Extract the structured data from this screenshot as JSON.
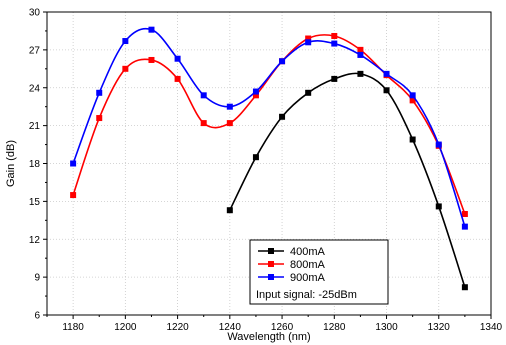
{
  "chart_data": {
    "type": "line",
    "title": "",
    "xlabel": "Wavelength (nm)",
    "ylabel": "Gain (dB)",
    "xlim": [
      1170,
      1340
    ],
    "ylim": [
      6,
      30
    ],
    "xticks": [
      1180,
      1200,
      1220,
      1240,
      1260,
      1280,
      1300,
      1320,
      1340
    ],
    "yticks": [
      6,
      9,
      12,
      15,
      18,
      21,
      24,
      27,
      30
    ],
    "grid": true,
    "grid_style": "dotted",
    "legend_position": "bottom-center",
    "annotation": "Input signal: -25dBm",
    "series": [
      {
        "name": "400mA",
        "color": "#000000",
        "x": [
          1240,
          1250,
          1260,
          1270,
          1280,
          1290,
          1300,
          1310,
          1320,
          1330
        ],
        "y": [
          14.3,
          18.5,
          21.7,
          23.6,
          24.7,
          25.1,
          23.8,
          19.9,
          14.6,
          8.2
        ]
      },
      {
        "name": "800mA",
        "color": "#ff0000",
        "x": [
          1180,
          1190,
          1200,
          1210,
          1220,
          1230,
          1240,
          1250,
          1260,
          1270,
          1280,
          1290,
          1300,
          1310,
          1320,
          1330
        ],
        "y": [
          15.5,
          21.6,
          25.5,
          26.2,
          24.7,
          21.2,
          21.2,
          23.4,
          26.1,
          27.9,
          28.1,
          27.0,
          25.0,
          23.0,
          19.4,
          14.0
        ]
      },
      {
        "name": "900mA",
        "color": "#0000ff",
        "x": [
          1180,
          1190,
          1200,
          1210,
          1220,
          1230,
          1240,
          1250,
          1260,
          1270,
          1280,
          1290,
          1300,
          1310,
          1320,
          1330
        ],
        "y": [
          18.0,
          23.6,
          27.7,
          28.6,
          26.3,
          23.4,
          22.5,
          23.7,
          26.1,
          27.6,
          27.5,
          26.6,
          25.1,
          23.4,
          19.5,
          13.0
        ]
      }
    ]
  }
}
